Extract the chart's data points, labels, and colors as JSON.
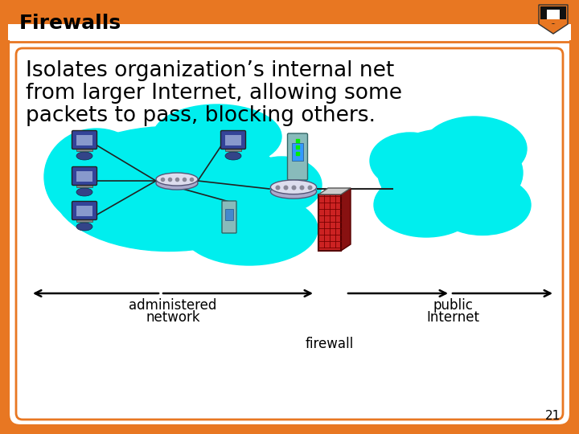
{
  "title": "Firewalls",
  "subtitle_line1": "Isolates organization’s internal net",
  "subtitle_line2": "from larger Internet, allowing some",
  "subtitle_line3": "packets to pass, blocking others.",
  "border_color": "#E87722",
  "background_color": "#ffffff",
  "title_color": "#000000",
  "text_color": "#000000",
  "cyan_color": "#00EEEE",
  "label_administered": "administered\nnetwork",
  "label_public": "public\nInternet",
  "label_firewall": "firewall",
  "slide_number": "21"
}
